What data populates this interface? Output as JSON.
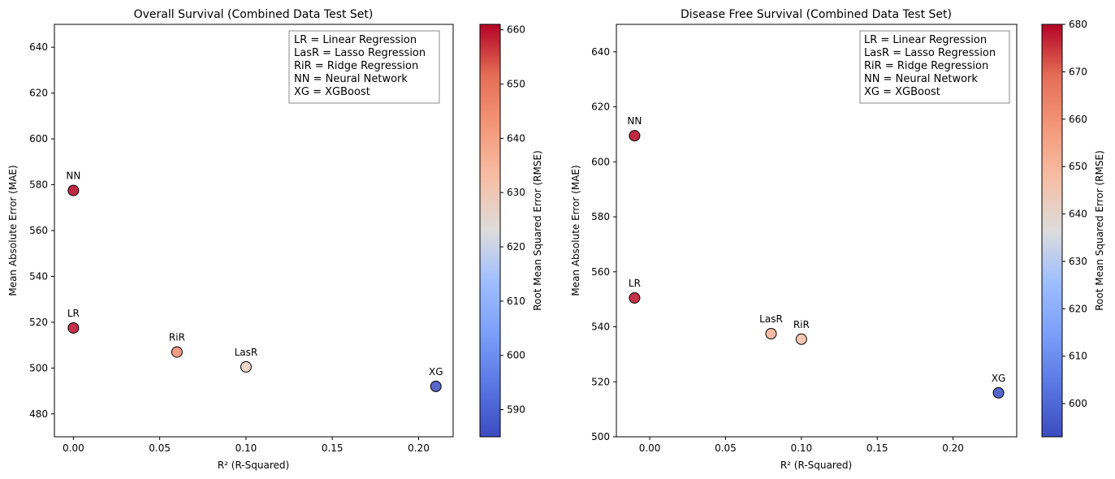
{
  "chart_data": [
    {
      "type": "scatter",
      "title": "Overall Survival (Combined Data Test Set)",
      "xlabel": "R² (R-Squared)",
      "ylabel": "Mean Absolute Error (MAE)",
      "xlim": [
        -0.011,
        0.22
      ],
      "ylim": [
        470,
        650
      ],
      "xticks": [
        0.0,
        0.05,
        0.1,
        0.15,
        0.2
      ],
      "xtick_labels": [
        "0.00",
        "0.05",
        "0.10",
        "0.15",
        "0.20"
      ],
      "yticks": [
        480,
        500,
        520,
        540,
        560,
        580,
        600,
        620,
        640
      ],
      "ytick_labels": [
        "480",
        "500",
        "520",
        "540",
        "560",
        "580",
        "600",
        "620",
        "640"
      ],
      "colorbar": {
        "label": "Root Mean Squared Error (RMSE)",
        "min": 585,
        "max": 661,
        "ticks": [
          590,
          600,
          610,
          620,
          630,
          640,
          650,
          660
        ],
        "tick_labels": [
          "590",
          "600",
          "610",
          "620",
          "630",
          "640",
          "650",
          "660"
        ]
      },
      "legend_lines": [
        "LR = Linear Regression",
        "LasR = Lasso Regression",
        "RiR = Ridge Regression",
        "NN = Neural Network",
        "XG = XGBoost"
      ],
      "points": [
        {
          "label": "NN",
          "x": 0.0,
          "y": 577.5,
          "rmse": 661
        },
        {
          "label": "LR",
          "x": 0.0,
          "y": 517.5,
          "rmse": 660
        },
        {
          "label": "RiR",
          "x": 0.06,
          "y": 507,
          "rmse": 645
        },
        {
          "label": "LasR",
          "x": 0.1,
          "y": 500.5,
          "rmse": 628
        },
        {
          "label": "XG",
          "x": 0.21,
          "y": 492,
          "rmse": 585
        }
      ]
    },
    {
      "type": "scatter",
      "title": "Disease Free Survival (Combined Data Test Set)",
      "xlabel": "R² (R-Squared)",
      "ylabel": "Mean Absolute Error (MAE)",
      "xlim": [
        -0.022,
        0.242
      ],
      "ylim": [
        500,
        650
      ],
      "xticks": [
        0.0,
        0.05,
        0.1,
        0.15,
        0.2
      ],
      "xtick_labels": [
        "0.00",
        "0.05",
        "0.10",
        "0.15",
        "0.20"
      ],
      "yticks": [
        500,
        520,
        540,
        560,
        580,
        600,
        620,
        640
      ],
      "ytick_labels": [
        "500",
        "520",
        "540",
        "560",
        "580",
        "600",
        "620",
        "640"
      ],
      "colorbar": {
        "label": "Root Mean Squared Error (RMSE)",
        "min": 593,
        "max": 680,
        "ticks": [
          600,
          610,
          620,
          630,
          640,
          650,
          660,
          670,
          680
        ],
        "tick_labels": [
          "600",
          "610",
          "620",
          "630",
          "640",
          "650",
          "660",
          "670",
          "680"
        ]
      },
      "legend_lines": [
        "LR = Linear Regression",
        "LasR = Lasso Regression",
        "RiR = Ridge Regression",
        "NN = Neural Network",
        "XG = XGBoost"
      ],
      "points": [
        {
          "label": "NN",
          "x": -0.01,
          "y": 609.5,
          "rmse": 680
        },
        {
          "label": "LR",
          "x": -0.01,
          "y": 550.5,
          "rmse": 679
        },
        {
          "label": "LasR",
          "x": 0.08,
          "y": 537.5,
          "rmse": 652
        },
        {
          "label": "RiR",
          "x": 0.1,
          "y": 535.5,
          "rmse": 648
        },
        {
          "label": "XG",
          "x": 0.23,
          "y": 516,
          "rmse": 593
        }
      ]
    }
  ]
}
